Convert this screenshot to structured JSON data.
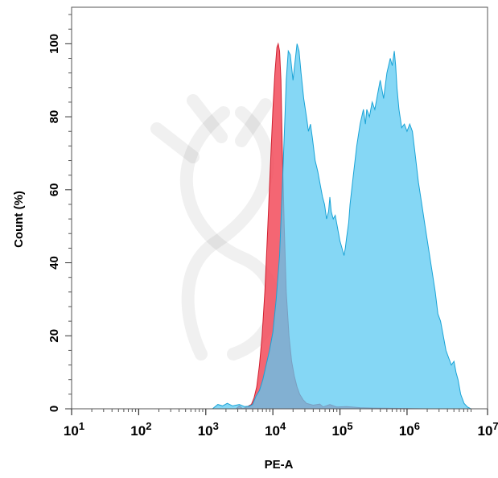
{
  "chart_data": {
    "type": "area",
    "title": "",
    "xlabel": "PE-A",
    "ylabel": "Count  (%)",
    "xscale": "log",
    "xlim": [
      1,
      7.2
    ],
    "ylim": [
      0,
      110
    ],
    "x_ticks": [
      {
        "base": "10",
        "exp": "1",
        "value": 1
      },
      {
        "base": "10",
        "exp": "2",
        "value": 2
      },
      {
        "base": "10",
        "exp": "3",
        "value": 3
      },
      {
        "base": "10",
        "exp": "4",
        "value": 4
      },
      {
        "base": "10",
        "exp": "5",
        "value": 5
      },
      {
        "base": "10",
        "exp": "6",
        "value": 6
      },
      {
        "base": "10",
        "exp": "7.2",
        "value": 7.2
      }
    ],
    "y_ticks": [
      "0",
      "20",
      "40",
      "60",
      "80",
      "100"
    ],
    "grid": false,
    "legend": "none",
    "series": [
      {
        "color": "#f24b5a",
        "opacity": 0.85,
        "stroke": "#d02030",
        "points": [
          [
            1.0,
            0
          ],
          [
            3.45,
            0
          ],
          [
            3.5,
            0.8
          ],
          [
            3.55,
            0
          ],
          [
            3.62,
            0.6
          ],
          [
            3.68,
            1.2
          ],
          [
            3.72,
            3
          ],
          [
            3.76,
            6
          ],
          [
            3.8,
            12
          ],
          [
            3.84,
            20
          ],
          [
            3.88,
            32
          ],
          [
            3.92,
            48
          ],
          [
            3.96,
            65
          ],
          [
            4.0,
            82
          ],
          [
            4.03,
            92
          ],
          [
            4.06,
            99
          ],
          [
            4.08,
            100
          ],
          [
            4.1,
            98
          ],
          [
            4.12,
            90
          ],
          [
            4.14,
            72
          ],
          [
            4.17,
            50
          ],
          [
            4.2,
            32
          ],
          [
            4.24,
            20
          ],
          [
            4.28,
            13
          ],
          [
            4.32,
            9
          ],
          [
            4.36,
            6
          ],
          [
            4.4,
            4
          ],
          [
            4.45,
            2.5
          ],
          [
            4.5,
            1.5
          ],
          [
            4.6,
            1
          ],
          [
            4.7,
            1.3
          ],
          [
            4.75,
            0.5
          ],
          [
            4.85,
            1.2
          ],
          [
            4.95,
            0.5
          ],
          [
            5.1,
            0.6
          ],
          [
            5.3,
            0.3
          ],
          [
            5.5,
            0.2
          ],
          [
            5.9,
            0.1
          ],
          [
            6.3,
            0
          ]
        ]
      },
      {
        "color": "#5ccaf2",
        "opacity": 0.75,
        "stroke": "#1aa3d6",
        "points": [
          [
            1.0,
            0
          ],
          [
            3.1,
            0
          ],
          [
            3.18,
            1.2
          ],
          [
            3.25,
            0.8
          ],
          [
            3.32,
            1.5
          ],
          [
            3.4,
            0.8
          ],
          [
            3.5,
            1.2
          ],
          [
            3.58,
            0.6
          ],
          [
            3.65,
            0.7
          ],
          [
            3.7,
            1.2
          ],
          [
            3.75,
            3.5
          ],
          [
            3.8,
            5
          ],
          [
            3.85,
            8
          ],
          [
            3.9,
            12
          ],
          [
            3.95,
            16
          ],
          [
            4.0,
            21
          ],
          [
            4.05,
            30
          ],
          [
            4.1,
            42
          ],
          [
            4.14,
            60
          ],
          [
            4.18,
            80
          ],
          [
            4.2,
            90
          ],
          [
            4.23,
            98
          ],
          [
            4.26,
            97
          ],
          [
            4.3,
            90
          ],
          [
            4.33,
            95
          ],
          [
            4.36,
            100
          ],
          [
            4.39,
            98
          ],
          [
            4.42,
            92
          ],
          [
            4.46,
            85
          ],
          [
            4.5,
            80
          ],
          [
            4.53,
            76
          ],
          [
            4.56,
            78
          ],
          [
            4.59,
            74
          ],
          [
            4.63,
            68
          ],
          [
            4.67,
            65
          ],
          [
            4.7,
            62
          ],
          [
            4.74,
            58
          ],
          [
            4.77,
            56
          ],
          [
            4.8,
            52
          ],
          [
            4.83,
            54
          ],
          [
            4.85,
            58
          ],
          [
            4.87,
            54
          ],
          [
            4.9,
            52
          ],
          [
            4.93,
            53
          ],
          [
            4.96,
            50
          ],
          [
            5.0,
            46
          ],
          [
            5.03,
            44
          ],
          [
            5.06,
            42
          ],
          [
            5.08,
            44
          ],
          [
            5.1,
            47
          ],
          [
            5.13,
            51
          ],
          [
            5.15,
            56
          ],
          [
            5.2,
            64
          ],
          [
            5.25,
            72
          ],
          [
            5.3,
            78
          ],
          [
            5.35,
            82
          ],
          [
            5.38,
            78
          ],
          [
            5.4,
            82
          ],
          [
            5.44,
            80
          ],
          [
            5.48,
            84
          ],
          [
            5.52,
            82
          ],
          [
            5.56,
            86
          ],
          [
            5.6,
            90
          ],
          [
            5.65,
            85
          ],
          [
            5.7,
            92
          ],
          [
            5.75,
            96
          ],
          [
            5.78,
            94
          ],
          [
            5.81,
            98
          ],
          [
            5.83,
            94
          ],
          [
            5.85,
            88
          ],
          [
            5.88,
            82
          ],
          [
            5.92,
            77
          ],
          [
            5.96,
            78
          ],
          [
            6.0,
            76
          ],
          [
            6.04,
            78
          ],
          [
            6.08,
            76
          ],
          [
            6.12,
            70
          ],
          [
            6.17,
            62
          ],
          [
            6.22,
            56
          ],
          [
            6.27,
            50
          ],
          [
            6.32,
            44
          ],
          [
            6.37,
            38
          ],
          [
            6.42,
            32
          ],
          [
            6.46,
            26
          ],
          [
            6.5,
            24
          ],
          [
            6.54,
            20
          ],
          [
            6.58,
            16
          ],
          [
            6.62,
            14
          ],
          [
            6.66,
            12
          ],
          [
            6.7,
            13
          ],
          [
            6.73,
            10
          ],
          [
            6.76,
            8
          ],
          [
            6.8,
            4
          ],
          [
            6.85,
            1.5
          ],
          [
            6.9,
            0.5
          ],
          [
            6.95,
            0
          ],
          [
            7.2,
            0
          ]
        ]
      }
    ]
  }
}
